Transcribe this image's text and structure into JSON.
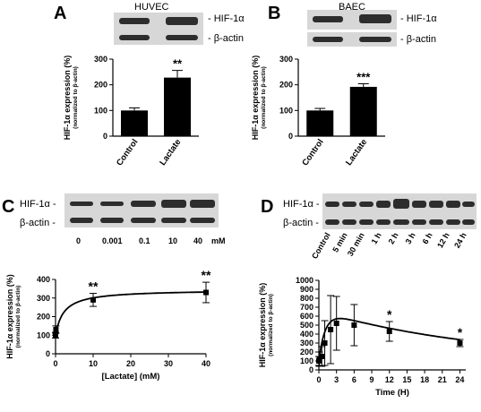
{
  "panels": {
    "A": {
      "letter": "A",
      "cell": "HUVEC"
    },
    "B": {
      "letter": "B",
      "cell": "BAEC"
    },
    "C": {
      "letter": "C"
    },
    "D": {
      "letter": "D"
    }
  },
  "blot_labels": {
    "hif": "- HIF-1α",
    "actin": "- β-actin",
    "hif_left": "HIF-1α -",
    "actin_left": "β-actin -",
    "hif_c": "HIF-1α -",
    "actin_c": "β-actin -"
  },
  "c_concentrations": [
    "0",
    "0.001",
    "0.1",
    "10",
    "40"
  ],
  "c_unit": "mM",
  "d_times": [
    "Control",
    "5 min",
    "30 min",
    "1 h",
    "2 h",
    "3 h",
    "6 h",
    "12 h",
    "24 h"
  ],
  "y_label_main": "HIF-1α expression (%)",
  "y_label_sub": "(normalized to β-actin)",
  "chart_data": [
    {
      "type": "bar",
      "panel": "A",
      "categories": [
        "Control",
        "Lactate"
      ],
      "values": [
        100,
        228
      ],
      "errors": [
        10,
        28
      ],
      "significance": [
        "",
        "**"
      ],
      "ylim": [
        0,
        300
      ],
      "yticks": [
        0,
        100,
        200,
        300
      ],
      "ylabel": "HIF-1α expression (%) (normalized to β-actin)"
    },
    {
      "type": "bar",
      "panel": "B",
      "categories": [
        "Control",
        "Lactate"
      ],
      "values": [
        100,
        192
      ],
      "errors": [
        8,
        12
      ],
      "significance": [
        "",
        "***"
      ],
      "ylim": [
        0,
        300
      ],
      "yticks": [
        0,
        100,
        200,
        300
      ],
      "ylabel": "HIF-1α expression (%) (normalized to β-actin)"
    },
    {
      "type": "line",
      "panel": "C",
      "x": [
        0,
        0.001,
        0.1,
        10,
        40
      ],
      "y": [
        100,
        100,
        130,
        290,
        330
      ],
      "errors": [
        15,
        15,
        20,
        35,
        55
      ],
      "significance": [
        "",
        "",
        "",
        "**",
        "**"
      ],
      "xlim": [
        0,
        40
      ],
      "xticks": [
        0,
        10,
        20,
        30,
        40
      ],
      "ylim": [
        0,
        400
      ],
      "yticks": [
        0,
        100,
        200,
        300,
        400
      ],
      "xlabel": "[Lactate] (mM)",
      "ylabel": "HIF-1α expression (%) (normalized to β-actin)"
    },
    {
      "type": "line",
      "panel": "D",
      "x": [
        0,
        0.083,
        0.5,
        1,
        2,
        3,
        6,
        12,
        24
      ],
      "y": [
        100,
        120,
        150,
        300,
        450,
        520,
        500,
        430,
        300
      ],
      "errors": [
        50,
        80,
        110,
        250,
        380,
        300,
        230,
        110,
        40
      ],
      "significance": [
        "",
        "",
        "",
        "",
        "",
        "",
        "",
        "*",
        "*"
      ],
      "xlim": [
        0,
        25
      ],
      "xticks": [
        0,
        3,
        6,
        9,
        12,
        15,
        18,
        21,
        24
      ],
      "ylim": [
        0,
        1000
      ],
      "yticks": [
        0,
        100,
        200,
        300,
        400,
        500,
        600,
        700,
        800,
        900,
        1000
      ],
      "xlabel": "Time (H)",
      "ylabel": "HIF-1α expression (%) (normalized to β-actin)"
    }
  ]
}
